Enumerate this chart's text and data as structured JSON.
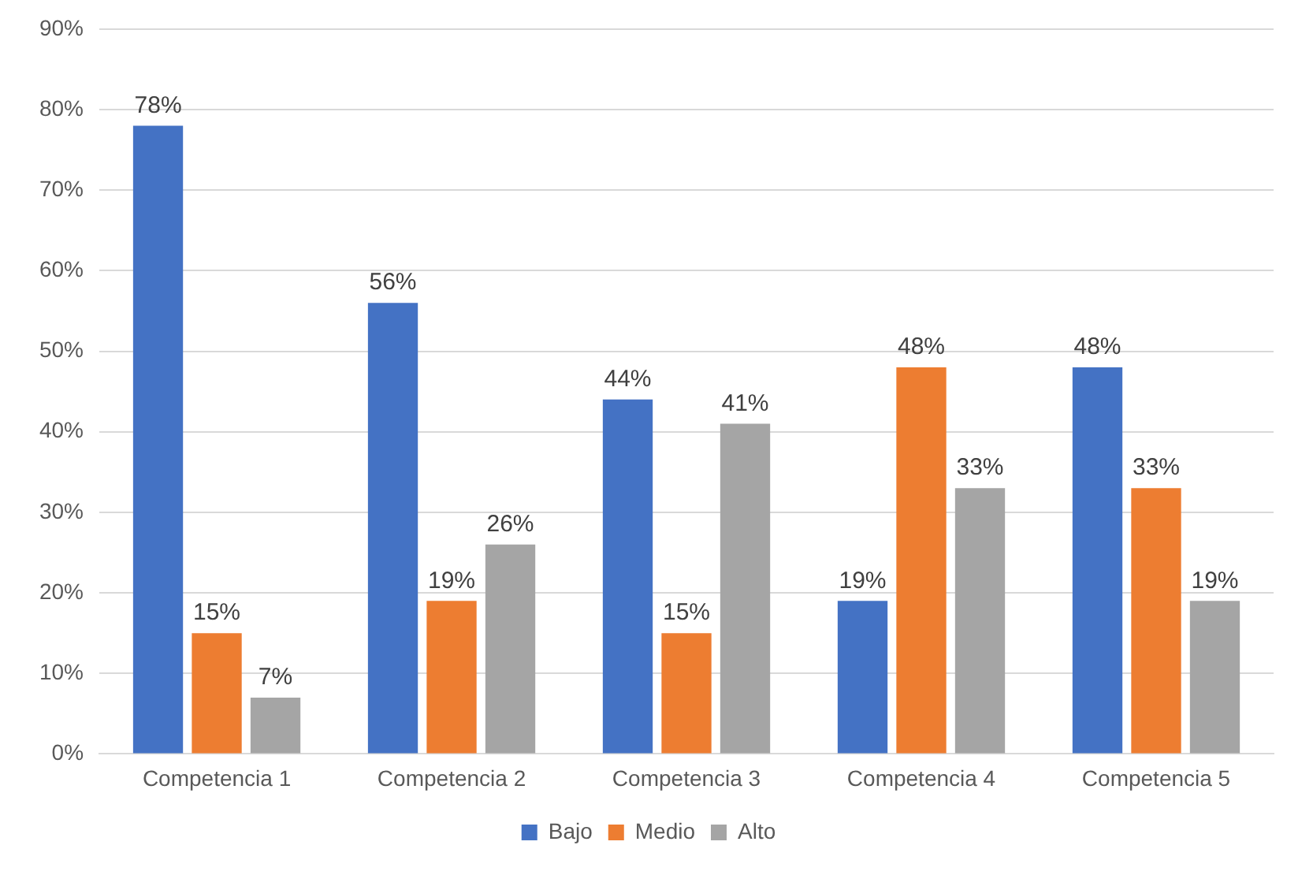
{
  "chart_data": {
    "type": "bar",
    "categories": [
      "Competencia 1",
      "Competencia 2",
      "Competencia 3",
      "Competencia 4",
      "Competencia 5"
    ],
    "series": [
      {
        "name": "Bajo",
        "color": "#4472c4",
        "values": [
          78,
          56,
          44,
          19,
          48
        ],
        "value_labels": [
          "78%",
          "56%",
          "44%",
          "19%",
          "48%"
        ]
      },
      {
        "name": "Medio",
        "color": "#ed7d31",
        "values": [
          15,
          19,
          15,
          48,
          33
        ],
        "value_labels": [
          "15%",
          "19%",
          "15%",
          "48%",
          "33%"
        ]
      },
      {
        "name": "Alto",
        "color": "#a5a5a5",
        "values": [
          7,
          26,
          41,
          33,
          19
        ],
        "value_labels": [
          "7%",
          "26%",
          "41%",
          "33%",
          "19%"
        ]
      }
    ],
    "ylim": [
      0,
      90
    ],
    "yticks": [
      {
        "value": 0,
        "label": "0%"
      },
      {
        "value": 10,
        "label": "10%"
      },
      {
        "value": 20,
        "label": "20%"
      },
      {
        "value": 30,
        "label": "30%"
      },
      {
        "value": 40,
        "label": "40%"
      },
      {
        "value": 50,
        "label": "50%"
      },
      {
        "value": 60,
        "label": "60%"
      },
      {
        "value": 70,
        "label": "70%"
      },
      {
        "value": 80,
        "label": "80%"
      },
      {
        "value": 90,
        "label": "90%"
      }
    ],
    "grid": "y",
    "legend": "bottom"
  }
}
